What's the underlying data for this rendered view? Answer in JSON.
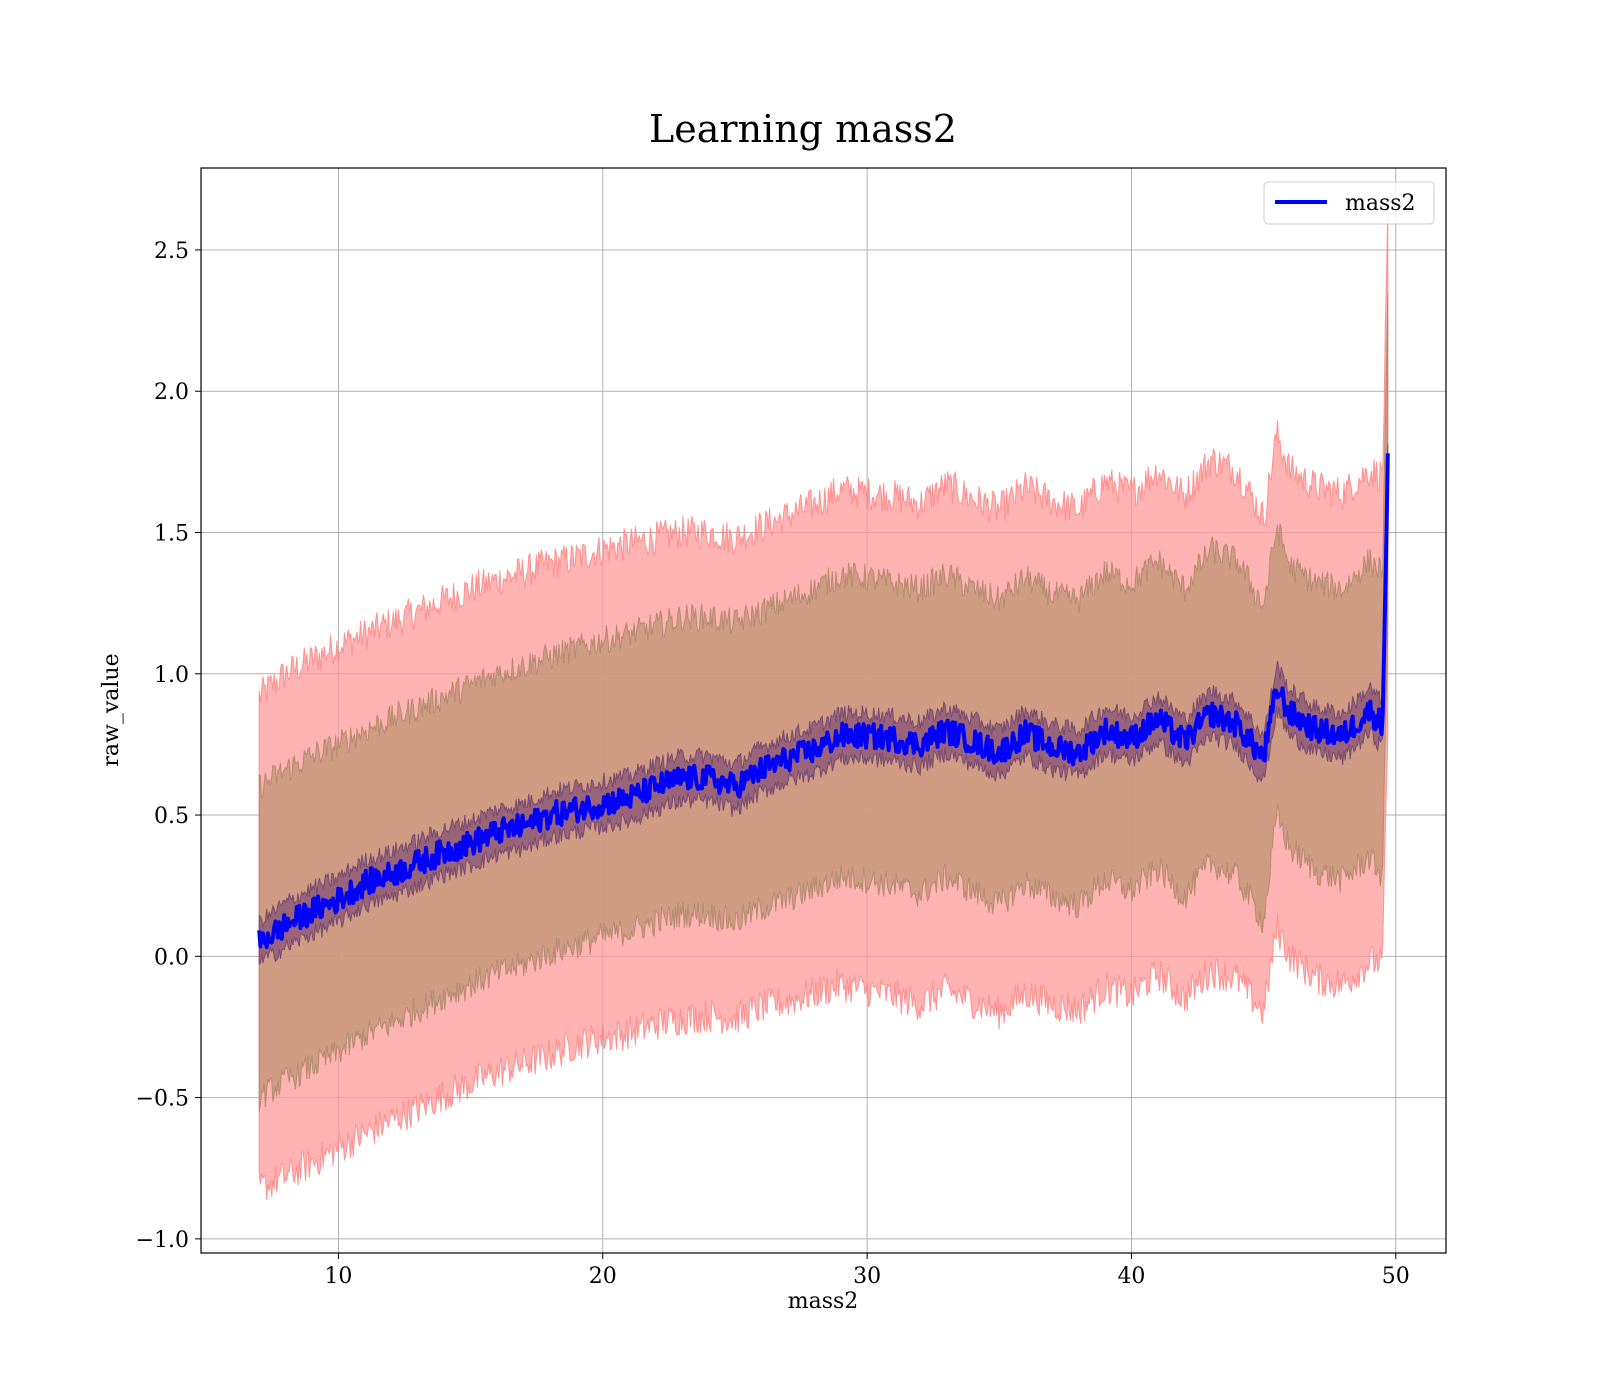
{
  "chart_data": {
    "type": "line",
    "title": "Learning mass2",
    "xlabel": "mass2",
    "ylabel": "raw_value",
    "xlim": [
      4.8,
      51.9
    ],
    "ylim": [
      -1.05,
      2.79
    ],
    "xticks": [
      10,
      20,
      30,
      40,
      50
    ],
    "yticks": [
      -1.0,
      -0.5,
      0.0,
      0.5,
      1.0,
      1.5,
      2.0,
      2.5
    ],
    "ytick_labels": [
      "−1.0",
      "−0.5",
      "0.0",
      "0.5",
      "1.0",
      "1.5",
      "2.0",
      "2.5"
    ],
    "grid": true,
    "legend": {
      "placement": "top-right",
      "entries": [
        "mass2"
      ]
    },
    "colors": {
      "mean": "#0000ff",
      "band_outer": "#ff9999",
      "band_inner": "#c7967a",
      "band_core": "#8f5a78"
    },
    "series": [
      {
        "name": "mass2",
        "x": [
          7.0,
          8.0,
          9.0,
          10.0,
          11.0,
          12.0,
          13.0,
          14.0,
          15.0,
          16.0,
          17.0,
          18.0,
          19.0,
          20.0,
          21.0,
          22.0,
          23.0,
          24.0,
          25.0,
          26.0,
          27.0,
          28.0,
          29.0,
          30.0,
          31.0,
          32.0,
          33.0,
          34.0,
          35.0,
          36.0,
          37.0,
          38.0,
          39.0,
          40.0,
          41.0,
          42.0,
          43.0,
          44.0,
          45.0,
          45.5,
          46.0,
          47.0,
          48.0,
          49.0,
          49.5,
          49.7
        ],
        "y": [
          0.05,
          0.11,
          0.16,
          0.2,
          0.26,
          0.29,
          0.33,
          0.37,
          0.4,
          0.44,
          0.46,
          0.5,
          0.52,
          0.54,
          0.56,
          0.6,
          0.63,
          0.63,
          0.6,
          0.66,
          0.7,
          0.73,
          0.78,
          0.78,
          0.77,
          0.75,
          0.8,
          0.76,
          0.72,
          0.79,
          0.74,
          0.72,
          0.8,
          0.77,
          0.84,
          0.76,
          0.86,
          0.82,
          0.7,
          0.95,
          0.86,
          0.8,
          0.78,
          0.87,
          0.82,
          1.76
        ]
      }
    ],
    "bands": [
      {
        "role": "outer",
        "x": [
          7.0,
          8.0,
          9.0,
          10.0,
          11.0,
          12.0,
          13.0,
          14.0,
          15.0,
          16.0,
          17.0,
          18.0,
          19.0,
          20.0,
          21.0,
          22.0,
          23.0,
          24.0,
          25.0,
          26.0,
          27.0,
          28.0,
          29.0,
          30.0,
          31.0,
          32.0,
          33.0,
          34.0,
          35.0,
          36.0,
          37.0,
          38.0,
          39.0,
          40.0,
          41.0,
          42.0,
          43.0,
          44.0,
          45.0,
          45.5,
          46.0,
          47.0,
          48.0,
          49.0,
          49.5,
          49.7
        ],
        "lower": [
          -0.82,
          -0.78,
          -0.73,
          -0.68,
          -0.63,
          -0.58,
          -0.54,
          -0.49,
          -0.45,
          -0.41,
          -0.38,
          -0.35,
          -0.31,
          -0.29,
          -0.27,
          -0.24,
          -0.22,
          -0.21,
          -0.22,
          -0.18,
          -0.16,
          -0.13,
          -0.1,
          -0.12,
          -0.14,
          -0.17,
          -0.12,
          -0.16,
          -0.2,
          -0.13,
          -0.17,
          -0.19,
          -0.11,
          -0.14,
          -0.06,
          -0.15,
          -0.05,
          -0.08,
          -0.2,
          0.1,
          0.0,
          -0.08,
          -0.1,
          -0.02,
          -0.02,
          0.8
        ],
        "upper": [
          0.92,
          1.0,
          1.05,
          1.1,
          1.14,
          1.18,
          1.22,
          1.26,
          1.3,
          1.33,
          1.36,
          1.39,
          1.41,
          1.44,
          1.46,
          1.48,
          1.5,
          1.5,
          1.48,
          1.52,
          1.56,
          1.6,
          1.65,
          1.64,
          1.63,
          1.6,
          1.67,
          1.62,
          1.58,
          1.66,
          1.61,
          1.58,
          1.68,
          1.64,
          1.72,
          1.63,
          1.76,
          1.72,
          1.55,
          1.85,
          1.72,
          1.66,
          1.64,
          1.72,
          1.7,
          2.6
        ]
      },
      {
        "role": "inner",
        "x": [
          7.0,
          8.0,
          9.0,
          10.0,
          11.0,
          12.0,
          13.0,
          14.0,
          15.0,
          16.0,
          17.0,
          18.0,
          19.0,
          20.0,
          21.0,
          22.0,
          23.0,
          24.0,
          25.0,
          26.0,
          27.0,
          28.0,
          29.0,
          30.0,
          31.0,
          32.0,
          33.0,
          34.0,
          35.0,
          36.0,
          37.0,
          38.0,
          39.0,
          40.0,
          41.0,
          42.0,
          43.0,
          44.0,
          45.0,
          45.5,
          46.0,
          47.0,
          48.0,
          49.0,
          49.5,
          49.7
        ],
        "lower": [
          -0.5,
          -0.44,
          -0.39,
          -0.34,
          -0.28,
          -0.24,
          -0.19,
          -0.14,
          -0.1,
          -0.06,
          -0.03,
          0.01,
          0.04,
          0.07,
          0.09,
          0.12,
          0.15,
          0.15,
          0.12,
          0.17,
          0.2,
          0.24,
          0.28,
          0.27,
          0.25,
          0.22,
          0.28,
          0.23,
          0.18,
          0.26,
          0.21,
          0.18,
          0.27,
          0.23,
          0.31,
          0.21,
          0.33,
          0.28,
          0.12,
          0.5,
          0.38,
          0.3,
          0.27,
          0.35,
          0.28,
          1.2
        ],
        "upper": [
          0.6,
          0.66,
          0.71,
          0.75,
          0.8,
          0.84,
          0.88,
          0.92,
          0.96,
          1.0,
          1.03,
          1.06,
          1.09,
          1.12,
          1.14,
          1.17,
          1.2,
          1.2,
          1.18,
          1.22,
          1.26,
          1.3,
          1.35,
          1.34,
          1.32,
          1.3,
          1.35,
          1.3,
          1.26,
          1.34,
          1.28,
          1.26,
          1.36,
          1.32,
          1.4,
          1.3,
          1.44,
          1.4,
          1.24,
          1.52,
          1.38,
          1.32,
          1.3,
          1.4,
          1.36,
          2.3
        ]
      },
      {
        "role": "core",
        "x": [
          7.0,
          8.0,
          9.0,
          10.0,
          11.0,
          12.0,
          13.0,
          14.0,
          15.0,
          16.0,
          17.0,
          18.0,
          19.0,
          20.0,
          21.0,
          22.0,
          23.0,
          24.0,
          25.0,
          26.0,
          27.0,
          28.0,
          29.0,
          30.0,
          31.0,
          32.0,
          33.0,
          34.0,
          35.0,
          36.0,
          37.0,
          38.0,
          39.0,
          40.0,
          41.0,
          42.0,
          43.0,
          44.0,
          45.0,
          45.5,
          46.0,
          47.0,
          48.0,
          49.0,
          49.5,
          49.7
        ],
        "lower": [
          -0.02,
          0.03,
          0.08,
          0.12,
          0.18,
          0.21,
          0.25,
          0.29,
          0.32,
          0.36,
          0.38,
          0.42,
          0.44,
          0.46,
          0.48,
          0.52,
          0.55,
          0.55,
          0.52,
          0.58,
          0.62,
          0.65,
          0.7,
          0.7,
          0.69,
          0.67,
          0.72,
          0.68,
          0.64,
          0.71,
          0.66,
          0.64,
          0.72,
          0.69,
          0.76,
          0.68,
          0.78,
          0.74,
          0.62,
          0.87,
          0.78,
          0.72,
          0.7,
          0.79,
          0.74,
          1.68
        ],
        "upper": [
          0.12,
          0.19,
          0.24,
          0.28,
          0.34,
          0.37,
          0.41,
          0.45,
          0.48,
          0.52,
          0.54,
          0.58,
          0.6,
          0.62,
          0.64,
          0.68,
          0.71,
          0.71,
          0.68,
          0.74,
          0.78,
          0.81,
          0.86,
          0.86,
          0.85,
          0.83,
          0.88,
          0.84,
          0.8,
          0.87,
          0.82,
          0.8,
          0.88,
          0.85,
          0.92,
          0.84,
          0.94,
          0.9,
          0.78,
          1.03,
          0.94,
          0.88,
          0.86,
          0.95,
          0.9,
          1.84
        ]
      }
    ]
  }
}
